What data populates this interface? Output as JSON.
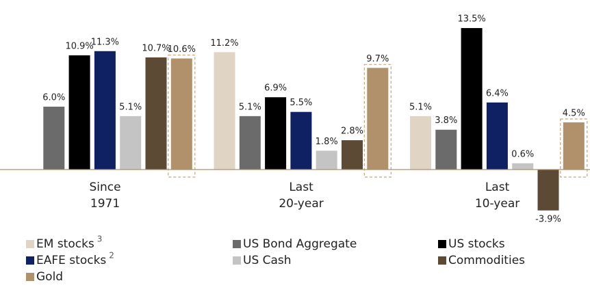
{
  "chart_data": {
    "type": "bar",
    "categories": [
      [
        "Since",
        "1971"
      ],
      [
        "Last",
        "20-year"
      ],
      [
        "Last",
        "10-year"
      ]
    ],
    "series": [
      {
        "name": "EM stocks",
        "note": "3",
        "color": "#e0d4c5",
        "values": [
          null,
          11.2,
          5.1
        ],
        "value_labels": [
          null,
          "11.2%",
          "5.1%"
        ]
      },
      {
        "name": "US Bond Aggregate",
        "color": "#6b6b6b",
        "values": [
          6.0,
          5.1,
          3.8
        ],
        "value_labels": [
          "6.0%",
          "5.1%",
          "3.8%"
        ]
      },
      {
        "name": "US stocks",
        "color": "#000000",
        "values": [
          10.9,
          6.9,
          13.5
        ],
        "value_labels": [
          "10.9%",
          "6.9%",
          "13.5%"
        ]
      },
      {
        "name": "EAFE stocks",
        "note": "2",
        "color": "#0f2163",
        "values": [
          11.3,
          5.5,
          6.4
        ],
        "value_labels": [
          "11.3%",
          "5.5%",
          "6.4%"
        ]
      },
      {
        "name": "US Cash",
        "color": "#c4c4c4",
        "values": [
          5.1,
          1.8,
          0.6
        ],
        "value_labels": [
          "5.1%",
          "1.8%",
          "0.6%"
        ]
      },
      {
        "name": "Commodities",
        "color": "#5c4a34",
        "values": [
          10.7,
          2.8,
          -3.9
        ],
        "value_labels": [
          "10.7%",
          "2.8%",
          "-3.9%"
        ]
      },
      {
        "name": "Gold",
        "color": "#b0916c",
        "highlight": true,
        "values": [
          10.6,
          9.7,
          4.5
        ],
        "value_labels": [
          "10.6%",
          "9.7%",
          "4.5%"
        ]
      }
    ]
  }
}
